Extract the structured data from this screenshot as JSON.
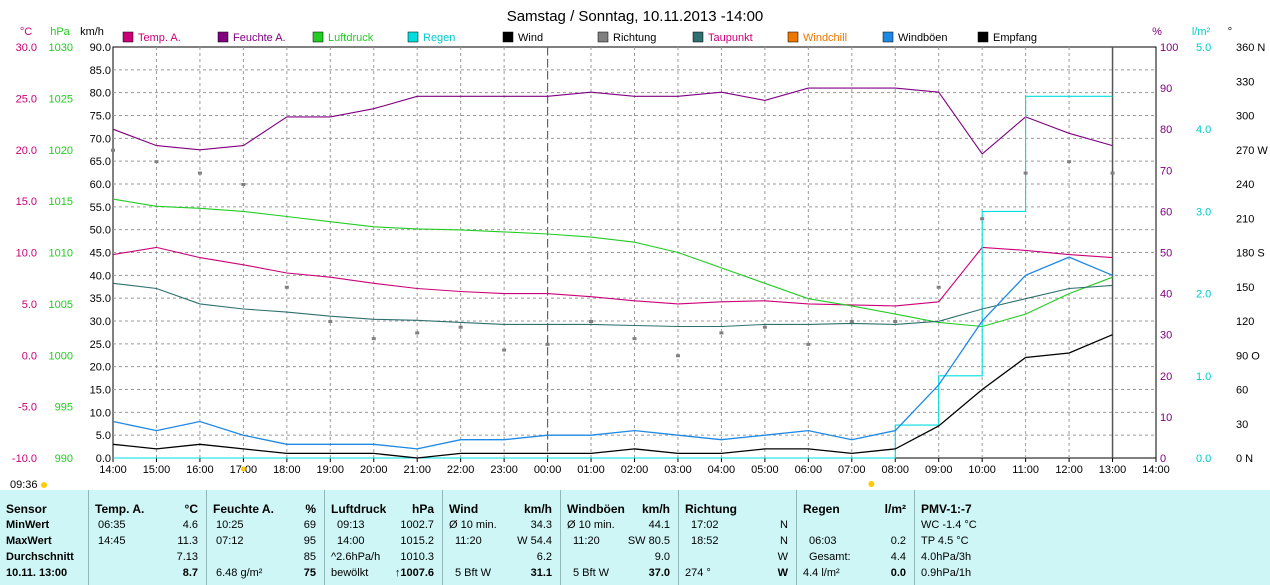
{
  "title": "Samstag / Sonntag, 10.11.2013  -14:00",
  "colors": {
    "temp": "#cc0077",
    "humidity": "#800080",
    "pressure": "#22cc22",
    "rain": "#00dddd",
    "wind": "#000000",
    "direction": "#808080",
    "dewpoint": "#2f6f6f",
    "windchill": "#ee7700",
    "gusts": "#1e88e5",
    "reception": "#000000",
    "stats_bg": "#cff6f6"
  },
  "axes": {
    "temp_unit": "°C",
    "pressure_unit": "hPa",
    "wind_unit": "km/h",
    "humidity_unit": "%",
    "rain_unit": "l/m²",
    "dir_unit": "°",
    "temp_ticks": [
      "30.0",
      "25.0",
      "20.0",
      "15.0",
      "10.0",
      "5.0",
      "0.0",
      "-5.0",
      "-10.0"
    ],
    "pressure_ticks": [
      "1030",
      "1025",
      "1020",
      "1015",
      "1010",
      "1005",
      "1000",
      "995",
      "990"
    ],
    "wind_ticks": [
      "90.0",
      "85.0",
      "80.0",
      "75.0",
      "70.0",
      "65.0",
      "60.0",
      "55.0",
      "50.0",
      "45.0",
      "40.0",
      "35.0",
      "30.0",
      "25.0",
      "20.0",
      "15.0",
      "10.0",
      "5.0",
      "0.0"
    ],
    "humidity_ticks": [
      "100",
      "90",
      "80",
      "70",
      "60",
      "50",
      "40",
      "30",
      "20",
      "10",
      "0"
    ],
    "rain_ticks": [
      "5.0",
      "4.0",
      "3.0",
      "2.0",
      "1.0",
      "0.0"
    ],
    "dir_ticks": [
      "360 N",
      "330",
      "300",
      "270 W",
      "240",
      "210",
      "180 S",
      "150",
      "120",
      "90 O",
      "60",
      "30",
      "0 N"
    ],
    "time_ticks": [
      "14:00",
      "15:00",
      "16:00",
      "17:00",
      "18:00",
      "19:00",
      "20:00",
      "21:00",
      "22:00",
      "23:00",
      "00:00",
      "01:00",
      "02:00",
      "03:00",
      "04:00",
      "05:00",
      "06:00",
      "07:00",
      "08:00",
      "09:00",
      "10:00",
      "11:00",
      "12:00",
      "13:00",
      "14:00"
    ],
    "sunrise": "09:36"
  },
  "legend": [
    {
      "label": "Temp. A.",
      "color": "#cc0077"
    },
    {
      "label": "Feuchte A.",
      "color": "#800080"
    },
    {
      "label": "Luftdruck",
      "color": "#22cc22"
    },
    {
      "label": "Regen",
      "color": "#00dddd"
    },
    {
      "label": "Wind",
      "color": "#000000"
    },
    {
      "label": "Richtung",
      "color": "#808080"
    },
    {
      "label": "Taupunkt",
      "color": "#2f6f6f"
    },
    {
      "label": "Windchill",
      "color": "#ee7700"
    },
    {
      "label": "Windböen",
      "color": "#1e88e5"
    },
    {
      "label": "Empfang",
      "color": "#000000"
    }
  ],
  "chart_data": {
    "type": "line",
    "title": "Samstag / Sonntag, 10.11.2013  -14:00",
    "x": [
      "14:00",
      "15:00",
      "16:00",
      "17:00",
      "18:00",
      "19:00",
      "20:00",
      "21:00",
      "22:00",
      "23:00",
      "00:00",
      "01:00",
      "02:00",
      "03:00",
      "04:00",
      "05:00",
      "06:00",
      "07:00",
      "08:00",
      "09:00",
      "10:00",
      "11:00",
      "12:00",
      "13:00"
    ],
    "series": [
      {
        "name": "Temp. A.",
        "unit": "°C",
        "values": [
          9.8,
          10.5,
          9.5,
          8.8,
          8.0,
          7.6,
          7.0,
          6.5,
          6.2,
          6.0,
          6.0,
          5.7,
          5.3,
          5.0,
          5.2,
          5.3,
          5.0,
          4.9,
          4.8,
          5.2,
          10.5,
          10.2,
          9.8,
          9.5
        ]
      },
      {
        "name": "Feuchte A.",
        "unit": "%",
        "values": [
          80,
          76,
          75,
          76,
          83,
          83,
          85,
          88,
          88,
          88,
          88,
          89,
          88,
          88,
          89,
          87,
          90,
          90,
          90,
          89,
          74,
          83,
          79,
          76
        ]
      },
      {
        "name": "Luftdruck",
        "unit": "hPa",
        "values": [
          1015.2,
          1014.5,
          1014.3,
          1014.0,
          1013.5,
          1013.0,
          1012.5,
          1012.3,
          1012.2,
          1012.0,
          1011.8,
          1011.5,
          1011.0,
          1010.0,
          1008.5,
          1007.0,
          1005.5,
          1004.8,
          1004.0,
          1003.2,
          1002.8,
          1004.0,
          1006.0,
          1007.6
        ]
      },
      {
        "name": "Regen",
        "unit": "l/m²",
        "values": [
          0,
          0,
          0,
          0,
          0,
          0,
          0,
          0,
          0,
          0,
          0,
          0,
          0,
          0,
          0,
          0,
          0,
          0,
          0.4,
          1.0,
          3.0,
          4.4,
          4.4,
          4.4
        ]
      },
      {
        "name": "Wind",
        "unit": "km/h",
        "values": [
          3,
          2,
          3,
          2,
          1,
          1,
          1,
          0,
          1,
          1,
          1,
          1,
          2,
          1,
          1,
          2,
          2,
          1,
          2,
          7,
          15,
          22,
          23,
          27
        ]
      },
      {
        "name": "Taupunkt",
        "unit": "°C",
        "values": [
          7.0,
          6.5,
          5.0,
          4.5,
          4.2,
          3.8,
          3.5,
          3.4,
          3.2,
          3.0,
          3.0,
          3.0,
          2.9,
          2.8,
          2.8,
          3.0,
          3.0,
          3.1,
          3.0,
          3.3,
          4.5,
          5.5,
          6.5,
          6.8
        ]
      },
      {
        "name": "Windböen",
        "unit": "km/h",
        "values": [
          8,
          6,
          8,
          5,
          3,
          3,
          3,
          2,
          4,
          4,
          5,
          5,
          6,
          5,
          4,
          5,
          6,
          4,
          6,
          16,
          30,
          40,
          44,
          40
        ]
      },
      {
        "name": "Richtung",
        "unit": "°",
        "values": [
          270,
          260,
          250,
          240,
          150,
          120,
          105,
          110,
          115,
          95,
          100,
          120,
          105,
          90,
          110,
          115,
          100,
          120,
          120,
          150,
          210,
          250,
          260,
          250
        ]
      }
    ]
  },
  "stats": {
    "sensor": {
      "title": "Sensor",
      "rows": [
        "MinWert",
        "MaxWert",
        "Durchschnitt"
      ],
      "date": "10.11. 13:00",
      "sunrise": "09:36"
    },
    "temp": {
      "title": "Temp. A.",
      "unit": "°C",
      "min_t": "06:35",
      "min": "4.6",
      "max_t": "14:45",
      "max": "11.3",
      "avg": "7.13",
      "cur": "8.7"
    },
    "hum": {
      "title": "Feuchte A.",
      "unit": "%",
      "min_t": "10:25",
      "min": "69",
      "max_t": "07:12",
      "max": "95",
      "avg": "85",
      "abs": "6.48 g/m²",
      "cur": "75"
    },
    "press": {
      "title": "Luftdruck",
      "unit": "hPa",
      "min_t": "09:13",
      "min": "1002.7",
      "max_t": "14:00",
      "max": "1015.2",
      "trend": "^2.6hPa/h",
      "avg": "1010.3",
      "cond": "bewölkt",
      "cur": "↑1007.6"
    },
    "wind": {
      "title": "Wind",
      "unit": "km/h",
      "r1_l": "Ø 10 min.",
      "r1": "34.3",
      "r2_l": "11:20",
      "r2": "W 54.4",
      "avg": "6.2",
      "bft": "5 Bft W",
      "cur": "31.1"
    },
    "gust": {
      "title": "Windböen",
      "unit": "km/h",
      "r1_l": "Ø 10 min.",
      "r1": "44.1",
      "r2_l": "11:20",
      "r2": "SW 80.5",
      "avg": "9.0",
      "bft": "5 Bft W",
      "cur": "37.0"
    },
    "dir": {
      "title": "Richtung",
      "r1_t": "17:02",
      "r1": "N",
      "r2_t": "18:52",
      "r2": "N",
      "avg": "W",
      "deg": "274 °",
      "cur": "W"
    },
    "rain": {
      "title": "Regen",
      "unit": "l/m²",
      "r2_t": "06:03",
      "r2": "0.2",
      "tot_l": "Gesamt:",
      "tot": "4.4",
      "daily": "4.4 l/m²",
      "cur": "0.0"
    },
    "pmv": {
      "title": "PMV-1:-7",
      "l1": "WC -1.4 °C",
      "l2": "TP 4.5 °C",
      "l3": "4.0hPa/3h",
      "l4": "0.9hPa/1h"
    }
  }
}
